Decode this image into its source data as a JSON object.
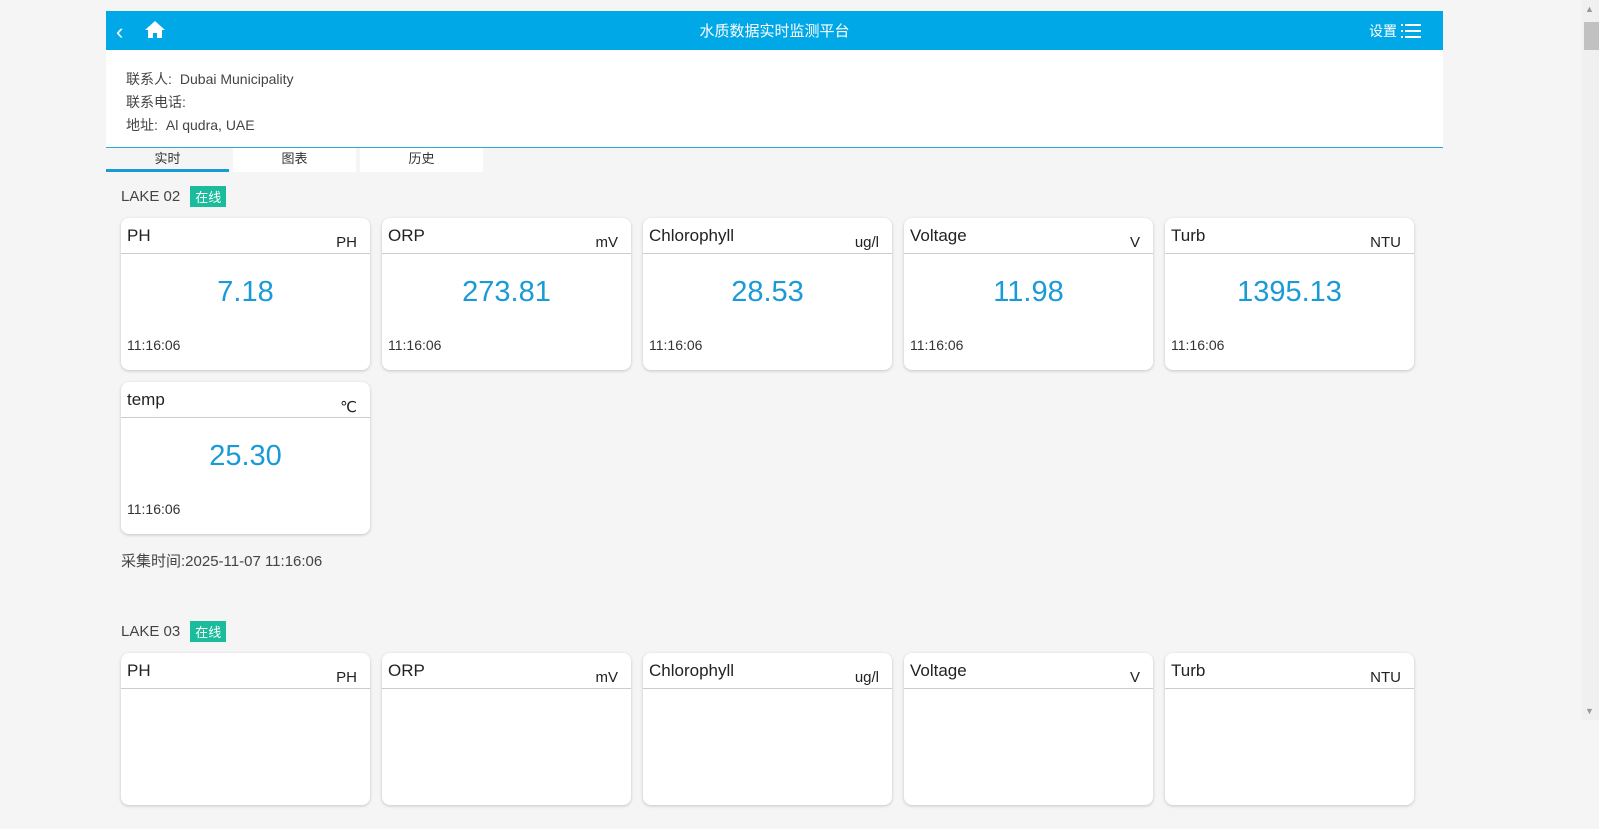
{
  "header": {
    "title": "水质数据实时监测平台",
    "settings_label": "设置",
    "back_icon": "chevron-left-icon",
    "home_icon": "home-icon",
    "menu_icon": "list-menu-icon"
  },
  "info": {
    "contact_label": "联系人:",
    "contact_value": "Dubai Municipality",
    "phone_label": "联系电话:",
    "phone_value": "",
    "address_label": "地址:",
    "address_value": "Al qudra, UAE"
  },
  "tabs": [
    {
      "label": "实时",
      "active": true
    },
    {
      "label": "图表"
    },
    {
      "label": "历史"
    }
  ],
  "colors": {
    "accent": "#00a8e8",
    "value": "#1a9ad6",
    "online": "#1abc9c"
  },
  "sections": [
    {
      "name": "LAKE 02",
      "status": "在线",
      "collect_label": "采集时间:",
      "collect_time": "2025-11-07 11:16:06",
      "cards": [
        {
          "name": "PH",
          "unit": "PH",
          "value": "7.18",
          "time": "11:16:06"
        },
        {
          "name": "ORP",
          "unit": "mV",
          "value": "273.81",
          "time": "11:16:06"
        },
        {
          "name": "Chlorophyll",
          "unit": "ug/l",
          "value": "28.53",
          "time": "11:16:06"
        },
        {
          "name": "Voltage",
          "unit": "V",
          "value": "11.98",
          "time": "11:16:06"
        },
        {
          "name": "Turb",
          "unit": "NTU",
          "value": "1395.13",
          "time": "11:16:06"
        },
        {
          "name": "temp",
          "unit": "℃",
          "value": "25.30",
          "time": "11:16:06"
        }
      ]
    },
    {
      "name": "LAKE 03",
      "status": "在线",
      "cards": [
        {
          "name": "PH",
          "unit": "PH"
        },
        {
          "name": "ORP",
          "unit": "mV"
        },
        {
          "name": "Chlorophyll",
          "unit": "ug/l"
        },
        {
          "name": "Voltage",
          "unit": "V"
        },
        {
          "name": "Turb",
          "unit": "NTU"
        }
      ]
    }
  ]
}
